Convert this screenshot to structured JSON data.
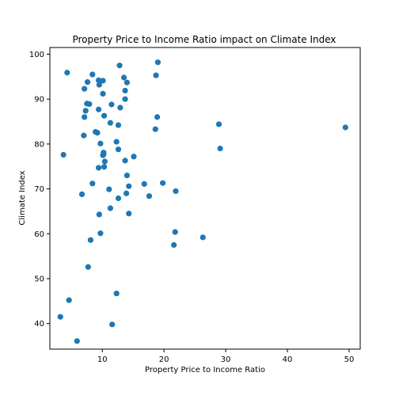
{
  "chart_data": {
    "type": "scatter",
    "title": "Property Price to Income Ratio impact on Climate Index",
    "xlabel": "Property Price to Income Ratio",
    "ylabel": "Climate Index",
    "xlim": [
      1.5,
      51.8
    ],
    "ylim": [
      34.3,
      101.5
    ],
    "xticks": [
      10,
      20,
      30,
      40,
      50
    ],
    "yticks": [
      40,
      50,
      60,
      70,
      80,
      90,
      100
    ],
    "grid": false,
    "legend": "none",
    "marker_color": "#1f77b4",
    "points": [
      {
        "x": 4.3,
        "y": 95.9
      },
      {
        "x": 7.6,
        "y": 93.8
      },
      {
        "x": 7.1,
        "y": 92.3
      },
      {
        "x": 8.4,
        "y": 95.5
      },
      {
        "x": 9.4,
        "y": 94.2
      },
      {
        "x": 9.5,
        "y": 93.2
      },
      {
        "x": 10.1,
        "y": 94.1
      },
      {
        "x": 10.1,
        "y": 91.2
      },
      {
        "x": 7.5,
        "y": 89.0
      },
      {
        "x": 7.9,
        "y": 88.9
      },
      {
        "x": 7.3,
        "y": 87.4
      },
      {
        "x": 9.4,
        "y": 87.7
      },
      {
        "x": 10.3,
        "y": 86.3
      },
      {
        "x": 7.1,
        "y": 86.0
      },
      {
        "x": 11.5,
        "y": 88.8
      },
      {
        "x": 12.8,
        "y": 97.5
      },
      {
        "x": 13.5,
        "y": 94.8
      },
      {
        "x": 14.0,
        "y": 93.7
      },
      {
        "x": 13.7,
        "y": 91.9
      },
      {
        "x": 13.7,
        "y": 90.0
      },
      {
        "x": 12.9,
        "y": 88.1
      },
      {
        "x": 19.0,
        "y": 98.2
      },
      {
        "x": 18.7,
        "y": 95.3
      },
      {
        "x": 18.9,
        "y": 86.0
      },
      {
        "x": 11.3,
        "y": 84.7
      },
      {
        "x": 12.6,
        "y": 84.2
      },
      {
        "x": 18.6,
        "y": 83.3
      },
      {
        "x": 8.9,
        "y": 82.7
      },
      {
        "x": 9.2,
        "y": 82.5
      },
      {
        "x": 7.0,
        "y": 81.9
      },
      {
        "x": 12.3,
        "y": 80.5
      },
      {
        "x": 9.7,
        "y": 80.1
      },
      {
        "x": 12.6,
        "y": 78.8
      },
      {
        "x": 10.2,
        "y": 78.1
      },
      {
        "x": 10.2,
        "y": 77.7
      },
      {
        "x": 10.1,
        "y": 77.5
      },
      {
        "x": 15.1,
        "y": 77.2
      },
      {
        "x": 3.7,
        "y": 77.6
      },
      {
        "x": 13.7,
        "y": 76.3
      },
      {
        "x": 10.4,
        "y": 76.1
      },
      {
        "x": 9.4,
        "y": 74.7
      },
      {
        "x": 10.3,
        "y": 74.9
      },
      {
        "x": 14.0,
        "y": 73.0
      },
      {
        "x": 8.4,
        "y": 71.2
      },
      {
        "x": 16.8,
        "y": 71.1
      },
      {
        "x": 19.8,
        "y": 71.3
      },
      {
        "x": 14.3,
        "y": 70.6
      },
      {
        "x": 11.1,
        "y": 69.9
      },
      {
        "x": 6.7,
        "y": 68.8
      },
      {
        "x": 13.9,
        "y": 69.0
      },
      {
        "x": 17.6,
        "y": 68.4
      },
      {
        "x": 21.9,
        "y": 69.5
      },
      {
        "x": 12.6,
        "y": 67.9
      },
      {
        "x": 11.3,
        "y": 65.7
      },
      {
        "x": 9.5,
        "y": 64.3
      },
      {
        "x": 14.3,
        "y": 64.5
      },
      {
        "x": 21.8,
        "y": 60.4
      },
      {
        "x": 9.7,
        "y": 60.1
      },
      {
        "x": 26.3,
        "y": 59.2
      },
      {
        "x": 8.1,
        "y": 58.6
      },
      {
        "x": 21.6,
        "y": 57.5
      },
      {
        "x": 7.7,
        "y": 52.6
      },
      {
        "x": 12.3,
        "y": 46.7
      },
      {
        "x": 4.6,
        "y": 45.2
      },
      {
        "x": 3.2,
        "y": 41.5
      },
      {
        "x": 11.6,
        "y": 39.8
      },
      {
        "x": 5.9,
        "y": 36.1
      },
      {
        "x": 28.9,
        "y": 84.4
      },
      {
        "x": 29.1,
        "y": 79.0
      },
      {
        "x": 49.4,
        "y": 83.7
      }
    ]
  }
}
